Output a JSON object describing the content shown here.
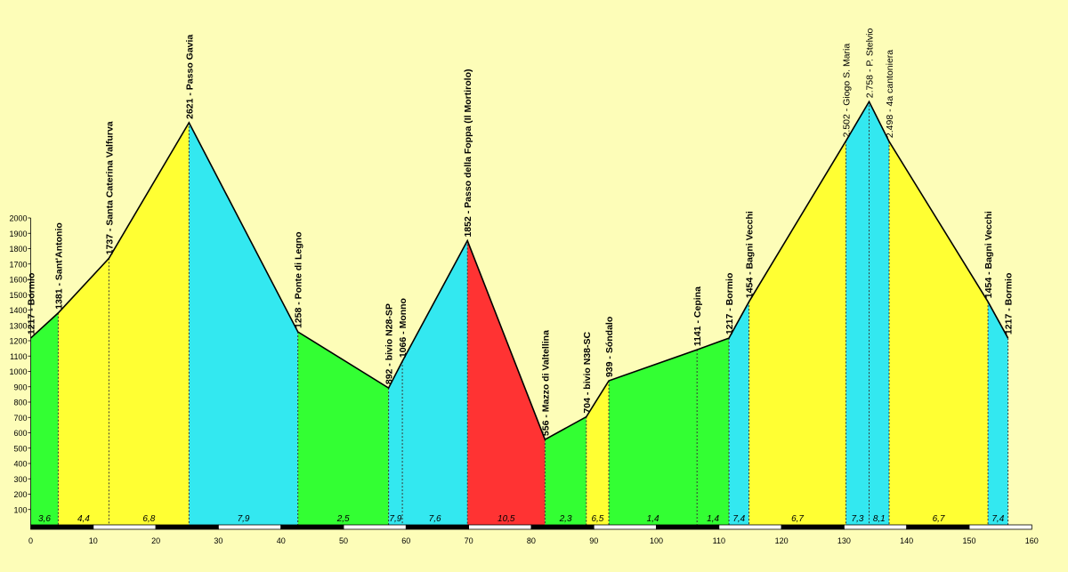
{
  "chart_data": {
    "type": "area",
    "title": "",
    "xlabel": "",
    "ylabel": "",
    "xlim": [
      0,
      160
    ],
    "ylim": [
      0,
      2000
    ],
    "x_ticks": [
      0,
      10,
      20,
      30,
      40,
      50,
      60,
      70,
      80,
      90,
      100,
      110,
      120,
      130,
      140,
      150,
      160
    ],
    "y_ticks": [
      100,
      200,
      300,
      400,
      500,
      600,
      700,
      800,
      900,
      1000,
      1100,
      1200,
      1300,
      1400,
      1500,
      1600,
      1700,
      1800,
      1900,
      2000
    ],
    "grid": false,
    "profile": [
      {
        "km": 0.0,
        "alt": 1217,
        "label": "1217 - Bormio"
      },
      {
        "km": 4.4,
        "alt": 1381,
        "label": "1381 - Sant'Antonio"
      },
      {
        "km": 12.5,
        "alt": 1737,
        "label": "1737 - Santa Caterina Valfurva"
      },
      {
        "km": 25.3,
        "alt": 2621,
        "label": "2621 - Passo Gavia"
      },
      {
        "km": 42.7,
        "alt": 1258,
        "label": "1258 - Ponte di Legno"
      },
      {
        "km": 57.2,
        "alt": 892,
        "label": "892 - bivio N28-SP"
      },
      {
        "km": 59.4,
        "alt": 1066,
        "label": "1066 - Monno"
      },
      {
        "km": 69.8,
        "alt": 1852,
        "label": "1852 - Passo della Foppa (Il Mortirolo)"
      },
      {
        "km": 82.2,
        "alt": 556,
        "label": "556 - Mazzo di Valtellina"
      },
      {
        "km": 88.8,
        "alt": 704,
        "label": "704 - bivio N38-SC"
      },
      {
        "km": 92.4,
        "alt": 939,
        "label": "939 - Sóndalo"
      },
      {
        "km": 106.5,
        "alt": 1141,
        "label": "1141 - Cepina"
      },
      {
        "km": 111.6,
        "alt": 1217,
        "label": "1217 - Bormio"
      },
      {
        "km": 114.8,
        "alt": 1454,
        "label": "1454 - Bagni Vecchi"
      },
      {
        "km": 130.3,
        "alt": 2502,
        "label": "2.502 - Giogo S. Maria"
      },
      {
        "km": 134.0,
        "alt": 2758,
        "label": "2.758 - P. Stelvio"
      },
      {
        "km": 137.2,
        "alt": 2498,
        "label": "2.498 - 4a cantoniera"
      },
      {
        "km": 153.0,
        "alt": 1454,
        "label": "1454 - Bagni Vecchi"
      },
      {
        "km": 156.2,
        "alt": 1217,
        "label": "1217 - Bormio"
      }
    ],
    "segments": [
      {
        "from": 0,
        "to": 1,
        "gradient": "3,6",
        "color": "#33ff33"
      },
      {
        "from": 1,
        "to": 2,
        "gradient": "4,4",
        "color": "#ffff33"
      },
      {
        "from": 2,
        "to": 3,
        "gradient": "6,8",
        "color": "#ffff33"
      },
      {
        "from": 3,
        "to": 4,
        "gradient": "7,9",
        "color": "#33e8f0"
      },
      {
        "from": 4,
        "to": 5,
        "gradient": "2,5",
        "color": "#33ff33"
      },
      {
        "from": 5,
        "to": 6,
        "gradient": "7,9",
        "color": "#33e8f0"
      },
      {
        "from": 6,
        "to": 7,
        "gradient": "7,6",
        "color": "#33e8f0"
      },
      {
        "from": 7,
        "to": 8,
        "gradient": "10,5",
        "color": "#ff3333"
      },
      {
        "from": 8,
        "to": 9,
        "gradient": "2,3",
        "color": "#33ff33"
      },
      {
        "from": 9,
        "to": 10,
        "gradient": "6,5",
        "color": "#ffff33"
      },
      {
        "from": 10,
        "to": 11,
        "gradient": "1,4",
        "color": "#33ff33"
      },
      {
        "from": 11,
        "to": 12,
        "gradient": "1,4",
        "color": "#33ff33"
      },
      {
        "from": 12,
        "to": 13,
        "gradient": "7,4",
        "color": "#33e8f0"
      },
      {
        "from": 13,
        "to": 14,
        "gradient": "6,7",
        "color": "#ffff33"
      },
      {
        "from": 14,
        "to": 15,
        "gradient": "7,3",
        "color": "#33e8f0"
      },
      {
        "from": 15,
        "to": 16,
        "gradient": "8,1",
        "color": "#33e8f0"
      },
      {
        "from": 16,
        "to": 17,
        "gradient": "6,7",
        "color": "#ffff33"
      },
      {
        "from": 17,
        "to": 18,
        "gradient": "7,4",
        "color": "#33e8f0"
      }
    ]
  }
}
